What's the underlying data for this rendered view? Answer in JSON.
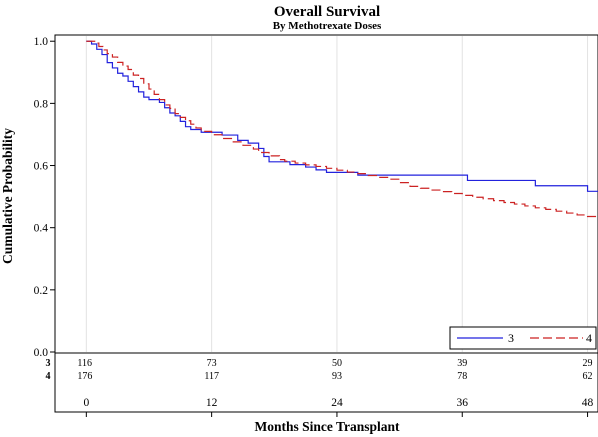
{
  "chart_data": {
    "type": "line",
    "subtype": "kaplan-meier step",
    "title": "Overall Survival",
    "subtitle": "By Methotrexate Doses",
    "xlabel": "Months Since Transplant",
    "ylabel": "Cumulative Probability",
    "xlim": [
      -3,
      49
    ],
    "ylim": [
      0,
      1.02
    ],
    "x_ticks": [
      0,
      12,
      24,
      36,
      48
    ],
    "x_tick_labels": [
      "0",
      "12",
      "24",
      "36",
      "48"
    ],
    "y_ticks": [
      0.0,
      0.2,
      0.4,
      0.6,
      0.8,
      1.0
    ],
    "y_tick_labels": [
      "0.0",
      "0.2",
      "0.4",
      "0.6",
      "0.8",
      "1.0"
    ],
    "grid": "vertical at x ticks",
    "legend_position": "bottom-right",
    "series": [
      {
        "name": "3",
        "color": "#2222dd",
        "dash": "solid",
        "points": [
          [
            0,
            1.0
          ],
          [
            0.5,
            0.991
          ],
          [
            1.0,
            0.974
          ],
          [
            1.5,
            0.957
          ],
          [
            2.0,
            0.931
          ],
          [
            2.5,
            0.914
          ],
          [
            3.0,
            0.897
          ],
          [
            3.5,
            0.888
          ],
          [
            4.0,
            0.871
          ],
          [
            4.5,
            0.854
          ],
          [
            5.0,
            0.837
          ],
          [
            5.5,
            0.82
          ],
          [
            6.0,
            0.812
          ],
          [
            7.0,
            0.803
          ],
          [
            7.5,
            0.786
          ],
          [
            8.0,
            0.769
          ],
          [
            8.5,
            0.76
          ],
          [
            9.0,
            0.742
          ],
          [
            9.5,
            0.725
          ],
          [
            10.0,
            0.716
          ],
          [
            11.0,
            0.707
          ],
          [
            13.0,
            0.698
          ],
          [
            14.5,
            0.681
          ],
          [
            15.5,
            0.672
          ],
          [
            16.5,
            0.655
          ],
          [
            17.0,
            0.629
          ],
          [
            17.5,
            0.612
          ],
          [
            19.5,
            0.603
          ],
          [
            21.0,
            0.595
          ],
          [
            22.0,
            0.586
          ],
          [
            23.0,
            0.578
          ],
          [
            26.0,
            0.569
          ],
          [
            36.5,
            0.552
          ],
          [
            43.0,
            0.535
          ],
          [
            48.0,
            0.517
          ],
          [
            49.0,
            0.517
          ]
        ]
      },
      {
        "name": "4",
        "color": "#cc2222",
        "dash": "long-dash",
        "points": [
          [
            0,
            1.0
          ],
          [
            0.8,
            0.994
          ],
          [
            1.2,
            0.983
          ],
          [
            1.6,
            0.972
          ],
          [
            2.0,
            0.96
          ],
          [
            2.5,
            0.949
          ],
          [
            3.0,
            0.932
          ],
          [
            3.5,
            0.92
          ],
          [
            4.0,
            0.909
          ],
          [
            4.5,
            0.891
          ],
          [
            5.0,
            0.88
          ],
          [
            5.5,
            0.863
          ],
          [
            6.0,
            0.846
          ],
          [
            6.5,
            0.829
          ],
          [
            7.0,
            0.812
          ],
          [
            7.5,
            0.795
          ],
          [
            8.0,
            0.784
          ],
          [
            8.5,
            0.767
          ],
          [
            9.0,
            0.755
          ],
          [
            9.5,
            0.744
          ],
          [
            10.0,
            0.733
          ],
          [
            10.5,
            0.721
          ],
          [
            11.0,
            0.71
          ],
          [
            12.0,
            0.699
          ],
          [
            13.0,
            0.687
          ],
          [
            14.0,
            0.676
          ],
          [
            15.0,
            0.665
          ],
          [
            16.0,
            0.653
          ],
          [
            16.5,
            0.642
          ],
          [
            17.5,
            0.631
          ],
          [
            18.5,
            0.619
          ],
          [
            19.0,
            0.614
          ],
          [
            20.0,
            0.608
          ],
          [
            21.0,
            0.602
          ],
          [
            22.0,
            0.597
          ],
          [
            23.0,
            0.591
          ],
          [
            24.0,
            0.585
          ],
          [
            25.0,
            0.579
          ],
          [
            26.0,
            0.574
          ],
          [
            27.0,
            0.568
          ],
          [
            28.0,
            0.562
          ],
          [
            29.0,
            0.556
          ],
          [
            30.0,
            0.545
          ],
          [
            31.0,
            0.533
          ],
          [
            32.0,
            0.527
          ],
          [
            33.0,
            0.521
          ],
          [
            34.0,
            0.516
          ],
          [
            35.0,
            0.51
          ],
          [
            36.0,
            0.504
          ],
          [
            37.0,
            0.498
          ],
          [
            38.0,
            0.493
          ],
          [
            39.0,
            0.487
          ],
          [
            40.0,
            0.481
          ],
          [
            41.0,
            0.476
          ],
          [
            42.0,
            0.47
          ],
          [
            43.0,
            0.464
          ],
          [
            44.0,
            0.459
          ],
          [
            45.0,
            0.453
          ],
          [
            46.0,
            0.447
          ],
          [
            47.0,
            0.441
          ],
          [
            48.0,
            0.436
          ],
          [
            49.0,
            0.436
          ]
        ]
      }
    ],
    "at_risk": {
      "x": [
        0,
        12,
        24,
        36,
        48
      ],
      "rows": [
        {
          "group": "3",
          "values": [
            "116",
            "73",
            "50",
            "39",
            "29"
          ]
        },
        {
          "group": "4",
          "values": [
            "176",
            "117",
            "93",
            "78",
            "62"
          ]
        }
      ]
    }
  }
}
